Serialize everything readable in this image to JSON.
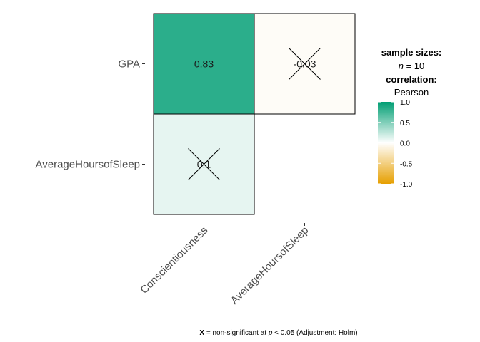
{
  "chart_data": {
    "type": "heatmap",
    "rows": [
      "GPA",
      "AverageHoursofSleep"
    ],
    "columns": [
      "Conscientiousness",
      "AverageHoursofSleep"
    ],
    "cells": [
      {
        "row": "GPA",
        "col": "Conscientiousness",
        "value": 0.83,
        "label": "0.83",
        "significant": true
      },
      {
        "row": "GPA",
        "col": "AverageHoursofSleep",
        "value": -0.03,
        "label": "-0.03",
        "significant": false
      },
      {
        "row": "AverageHoursofSleep",
        "col": "Conscientiousness",
        "value": 0.1,
        "label": "0.1",
        "significant": false
      }
    ],
    "color_range": [
      -1.0,
      1.0
    ],
    "colors": {
      "low": "#E69F00",
      "mid": "#FFFFFF",
      "high": "#009E73"
    },
    "legend": {
      "title1": "sample sizes:",
      "n_italic": "n",
      "n_rest": " = 10",
      "title2": "correlation:",
      "method": "Pearson",
      "ticks": [
        1.0,
        0.5,
        0.0,
        -0.5,
        -1.0
      ],
      "tick_labels": [
        "1.0",
        "0.5",
        "0.0",
        "-0.5",
        "-1.0"
      ],
      "placement": "right"
    },
    "caption": {
      "bold": "X",
      "part1": " = non-significant at ",
      "italic": "p",
      "part2": " < 0.05 (Adjustment: Holm)"
    }
  }
}
